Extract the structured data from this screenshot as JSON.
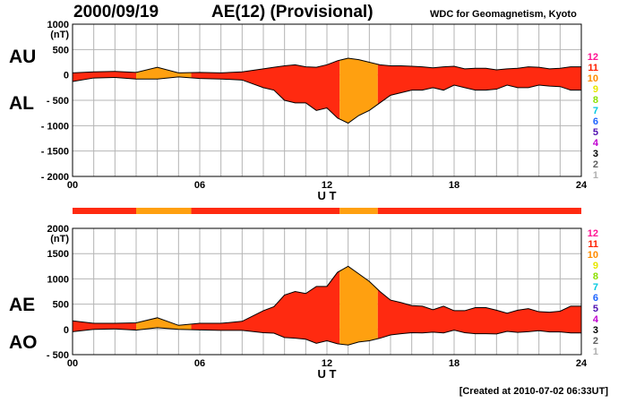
{
  "header": {
    "date": "2000/09/19",
    "title": "AE(12) (Provisional)",
    "organization": "WDC for Geomagnetism, Kyoto"
  },
  "footer": {
    "created": "[Created at 2010-07-02 06:33UT]"
  },
  "colors": {
    "fill_main": "#ff2a10",
    "fill_highlight": "#ffa010",
    "outline": "#000000",
    "grid": "#b4b4b4"
  },
  "station_counts": [
    {
      "label": "12",
      "color": "#ff1493"
    },
    {
      "label": "11",
      "color": "#ff2000"
    },
    {
      "label": "10",
      "color": "#ff8c00"
    },
    {
      "label": "9",
      "color": "#e8e800"
    },
    {
      "label": "8",
      "color": "#8ce000"
    },
    {
      "label": "7",
      "color": "#00c8e0"
    },
    {
      "label": "6",
      "color": "#1e64ff"
    },
    {
      "label": "5",
      "color": "#5010b0"
    },
    {
      "label": "4",
      "color": "#c000d0"
    },
    {
      "label": "3",
      "color": "#000000"
    },
    {
      "label": "2",
      "color": "#606060"
    },
    {
      "label": "1",
      "color": "#b0b0b0"
    }
  ],
  "chart_data": [
    {
      "type": "area",
      "name": "AU / AL",
      "series_labels": [
        "AU",
        "AL"
      ],
      "ylabel_unit": "(nT)",
      "ylim": [
        -2000,
        1000
      ],
      "yticks": [
        1000,
        500,
        0,
        -500,
        -1000,
        -1500,
        -2000
      ],
      "ytick_labels": [
        "1000",
        "500",
        "0",
        "- 500",
        "- 1000",
        "- 1500",
        "- 2000"
      ],
      "xlim": [
        0,
        24
      ],
      "xticks": [
        0,
        6,
        12,
        18,
        24
      ],
      "xtick_labels": [
        "00",
        "06",
        "12",
        "18",
        "24"
      ],
      "xlabel": "U T",
      "grid": true,
      "x": [
        0,
        1,
        2,
        3,
        4,
        5,
        6,
        7,
        8,
        9,
        9.5,
        10,
        10.5,
        11,
        11.5,
        12,
        12.5,
        13,
        13.5,
        14,
        14.5,
        15,
        15.5,
        16,
        16.5,
        17,
        17.5,
        18,
        18.5,
        19,
        19.5,
        20,
        20.5,
        21,
        21.5,
        22,
        22.5,
        23,
        23.5,
        24
      ],
      "upper": [
        40,
        60,
        70,
        50,
        150,
        40,
        50,
        40,
        60,
        120,
        150,
        180,
        200,
        160,
        150,
        200,
        280,
        330,
        300,
        250,
        200,
        180,
        180,
        170,
        160,
        140,
        160,
        170,
        120,
        130,
        130,
        100,
        120,
        130,
        160,
        150,
        120,
        130,
        160,
        160
      ],
      "lower": [
        -130,
        -60,
        -50,
        -80,
        -80,
        -40,
        -70,
        -80,
        -100,
        -250,
        -300,
        -500,
        -550,
        -550,
        -700,
        -650,
        -850,
        -950,
        -800,
        -700,
        -550,
        -400,
        -350,
        -300,
        -300,
        -250,
        -300,
        -200,
        -250,
        -300,
        -300,
        -280,
        -200,
        -250,
        -250,
        -200,
        -220,
        -230,
        -300,
        -300
      ]
    },
    {
      "type": "area",
      "name": "AE / AO",
      "series_labels": [
        "AE",
        "AO"
      ],
      "ylabel_unit": "(nT)",
      "ylim": [
        -500,
        2000
      ],
      "yticks": [
        2000,
        1500,
        1000,
        500,
        0,
        -500
      ],
      "ytick_labels": [
        "2000",
        "1500",
        "1000",
        "500",
        "0",
        "- 500"
      ],
      "xlim": [
        0,
        24
      ],
      "xticks": [
        0,
        6,
        12,
        18,
        24
      ],
      "xtick_labels": [
        "00",
        "06",
        "12",
        "18",
        "24"
      ],
      "xlabel": "U T",
      "grid": true,
      "x": [
        0,
        1,
        2,
        3,
        4,
        5,
        6,
        7,
        8,
        9,
        9.5,
        10,
        10.5,
        11,
        11.5,
        12,
        12.5,
        13,
        13.5,
        14,
        14.5,
        15,
        15.5,
        16,
        16.5,
        17,
        17.5,
        18,
        18.5,
        19,
        19.5,
        20,
        20.5,
        21,
        21.5,
        22,
        22.5,
        23,
        23.5,
        24
      ],
      "upper": [
        170,
        120,
        120,
        130,
        230,
        80,
        120,
        120,
        160,
        370,
        450,
        680,
        750,
        710,
        850,
        850,
        1130,
        1250,
        1100,
        950,
        750,
        580,
        530,
        470,
        460,
        390,
        460,
        370,
        370,
        430,
        430,
        380,
        320,
        380,
        410,
        350,
        340,
        360,
        460,
        460
      ],
      "lower": [
        -45,
        0,
        10,
        -15,
        35,
        0,
        -10,
        -20,
        -20,
        -65,
        -75,
        -160,
        -175,
        -195,
        -275,
        -225,
        -285,
        -310,
        -250,
        -225,
        -175,
        -110,
        -85,
        -65,
        -70,
        -55,
        -70,
        -15,
        -65,
        -85,
        -85,
        -90,
        -40,
        -60,
        -45,
        -25,
        -50,
        -50,
        -70,
        -70
      ]
    }
  ],
  "station_bar": {
    "segments": [
      {
        "start": 0,
        "end": 3,
        "count": "11"
      },
      {
        "start": 3,
        "end": 5.6,
        "count": "10"
      },
      {
        "start": 5.6,
        "end": 12.6,
        "count": "11"
      },
      {
        "start": 12.6,
        "end": 14.4,
        "count": "10"
      },
      {
        "start": 14.4,
        "end": 24,
        "count": "11"
      }
    ]
  }
}
